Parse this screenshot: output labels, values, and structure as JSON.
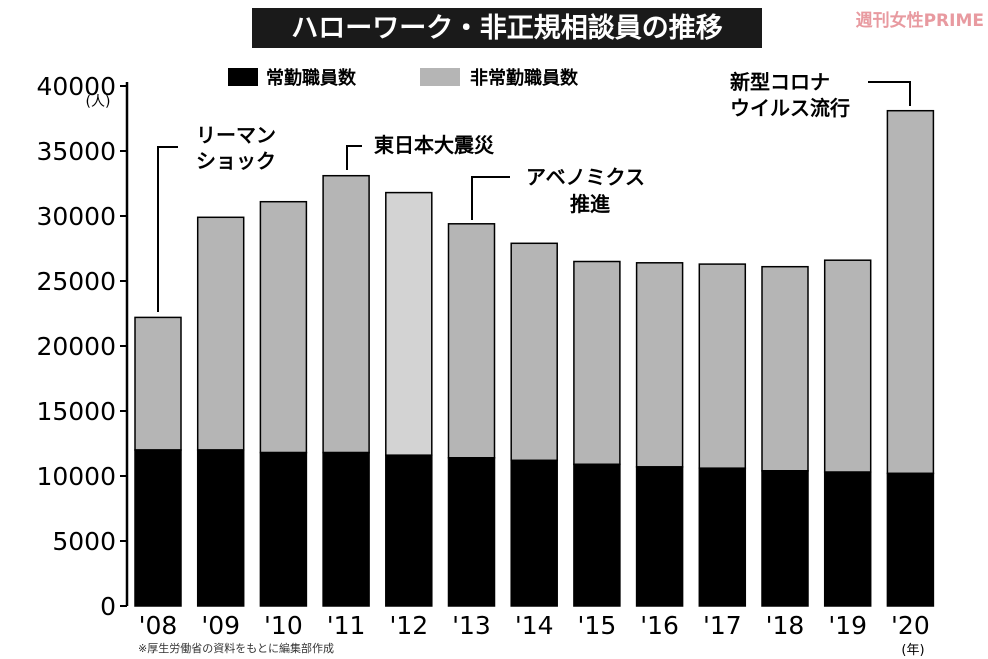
{
  "header": {
    "title": "ハローワーク・非正規相談員の推移",
    "watermark": "週刊女性PRIME"
  },
  "legend": {
    "regular_label": "常勤職員数",
    "nonregular_label": "非常勤職員数"
  },
  "annotations": {
    "lehman": [
      "リーマン",
      "ショック"
    ],
    "quake": [
      "東日本大震災"
    ],
    "abenomics": [
      "アベノミクス",
      "推進"
    ],
    "corona": [
      "新型コロナ",
      "ウイルス流行"
    ]
  },
  "axis": {
    "y_unit": "(人)",
    "x_unit": "(年)"
  },
  "footnote": "※厚生労働省の資料をもとに編集部作成",
  "colors": {
    "regular": "#000000",
    "nonregular": "#b5b5b5",
    "nonregular_2012": "#d3d3d3",
    "title_bg": "#1a1a1a",
    "title_text": "#ffffff",
    "watermark": "#e89aa0"
  },
  "chart_data": {
    "type": "bar",
    "stacked": true,
    "categories": [
      "'08",
      "'09",
      "'10",
      "'11",
      "'12",
      "'13",
      "'14",
      "'15",
      "'16",
      "'17",
      "'18",
      "'19",
      "'20"
    ],
    "series": [
      {
        "name": "常勤職員数",
        "values": [
          12000,
          12000,
          11800,
          11800,
          11600,
          11400,
          11200,
          10900,
          10700,
          10600,
          10400,
          10300,
          10200
        ]
      },
      {
        "name": "非常勤職員数",
        "values": [
          10200,
          17900,
          19300,
          21300,
          20200,
          18000,
          16700,
          15600,
          15700,
          15700,
          15700,
          16300,
          27900
        ]
      }
    ],
    "yticks": [
      0,
      5000,
      10000,
      15000,
      20000,
      25000,
      30000,
      35000,
      40000
    ],
    "ylim": [
      0,
      40000
    ],
    "grid": false,
    "legend_position": "top"
  }
}
